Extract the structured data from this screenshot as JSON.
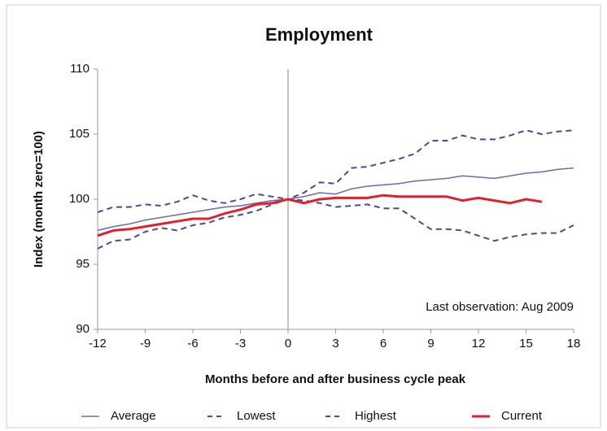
{
  "chart_data": {
    "type": "line",
    "title": "Employment",
    "y_label": "Index (month zero=100)",
    "x_label": "Months before and after business cycle peak",
    "annotation": "Last observation: Aug 2009",
    "x": [
      -12,
      -11,
      -10,
      -9,
      -8,
      -7,
      -6,
      -5,
      -4,
      -3,
      -2,
      -1,
      0,
      1,
      2,
      3,
      4,
      5,
      6,
      7,
      8,
      9,
      10,
      11,
      12,
      13,
      14,
      15,
      16,
      17,
      18
    ],
    "series": [
      {
        "name": "Average",
        "color": "#6b6bab",
        "dash": false,
        "width": 1.5,
        "values": [
          97.6,
          97.9,
          98.1,
          98.4,
          98.6,
          98.8,
          99.0,
          99.2,
          99.4,
          99.5,
          99.7,
          99.9,
          100,
          100.2,
          100.5,
          100.4,
          100.8,
          101.0,
          101.1,
          101.2,
          101.4,
          101.5,
          101.6,
          101.8,
          101.7,
          101.6,
          101.8,
          102.0,
          102.1,
          102.3,
          102.4
        ]
      },
      {
        "name": "Lowest",
        "color": "#4a4a8c",
        "dash": true,
        "width": 2,
        "values": [
          99.0,
          99.4,
          99.4,
          99.6,
          99.5,
          99.8,
          100.3,
          99.9,
          99.7,
          100.0,
          100.4,
          100.2,
          100,
          99.9,
          99.7,
          99.4,
          99.5,
          99.6,
          99.3,
          99.3,
          98.5,
          97.7,
          97.7,
          97.6,
          97.2,
          96.8,
          97.1,
          97.3,
          97.4,
          97.4,
          98.0
        ]
      },
      {
        "name": "Highest",
        "color": "#4a4a8c",
        "dash": true,
        "width": 2,
        "values": [
          96.2,
          96.8,
          96.9,
          97.5,
          97.8,
          97.6,
          98.0,
          98.2,
          98.6,
          98.8,
          99.1,
          99.6,
          100,
          100.5,
          101.3,
          101.2,
          102.4,
          102.5,
          102.8,
          103.1,
          103.5,
          104.5,
          104.5,
          104.9,
          104.6,
          104.6,
          104.9,
          105.3,
          105.0,
          105.2,
          105.3
        ]
      },
      {
        "name": "Current",
        "color": "#e0202a",
        "dash": false,
        "width": 3,
        "values": [
          97.2,
          97.6,
          97.7,
          97.9,
          98.1,
          98.3,
          98.5,
          98.5,
          98.9,
          99.2,
          99.6,
          99.7,
          100.0,
          99.7,
          100.0,
          100.1,
          100.1,
          100.1,
          100.3,
          100.2,
          100.2,
          100.2,
          100.2,
          99.9,
          100.1,
          99.9,
          99.7,
          100.0,
          99.8,
          null,
          null
        ]
      }
    ],
    "xlim": [
      -12,
      18
    ],
    "xticks": [
      -12,
      -9,
      -6,
      -3,
      0,
      3,
      6,
      9,
      12,
      15,
      18
    ],
    "ylim": [
      90,
      110
    ],
    "yticks": [
      90,
      95,
      100,
      105,
      110
    ],
    "vline": 0,
    "grid": false
  }
}
